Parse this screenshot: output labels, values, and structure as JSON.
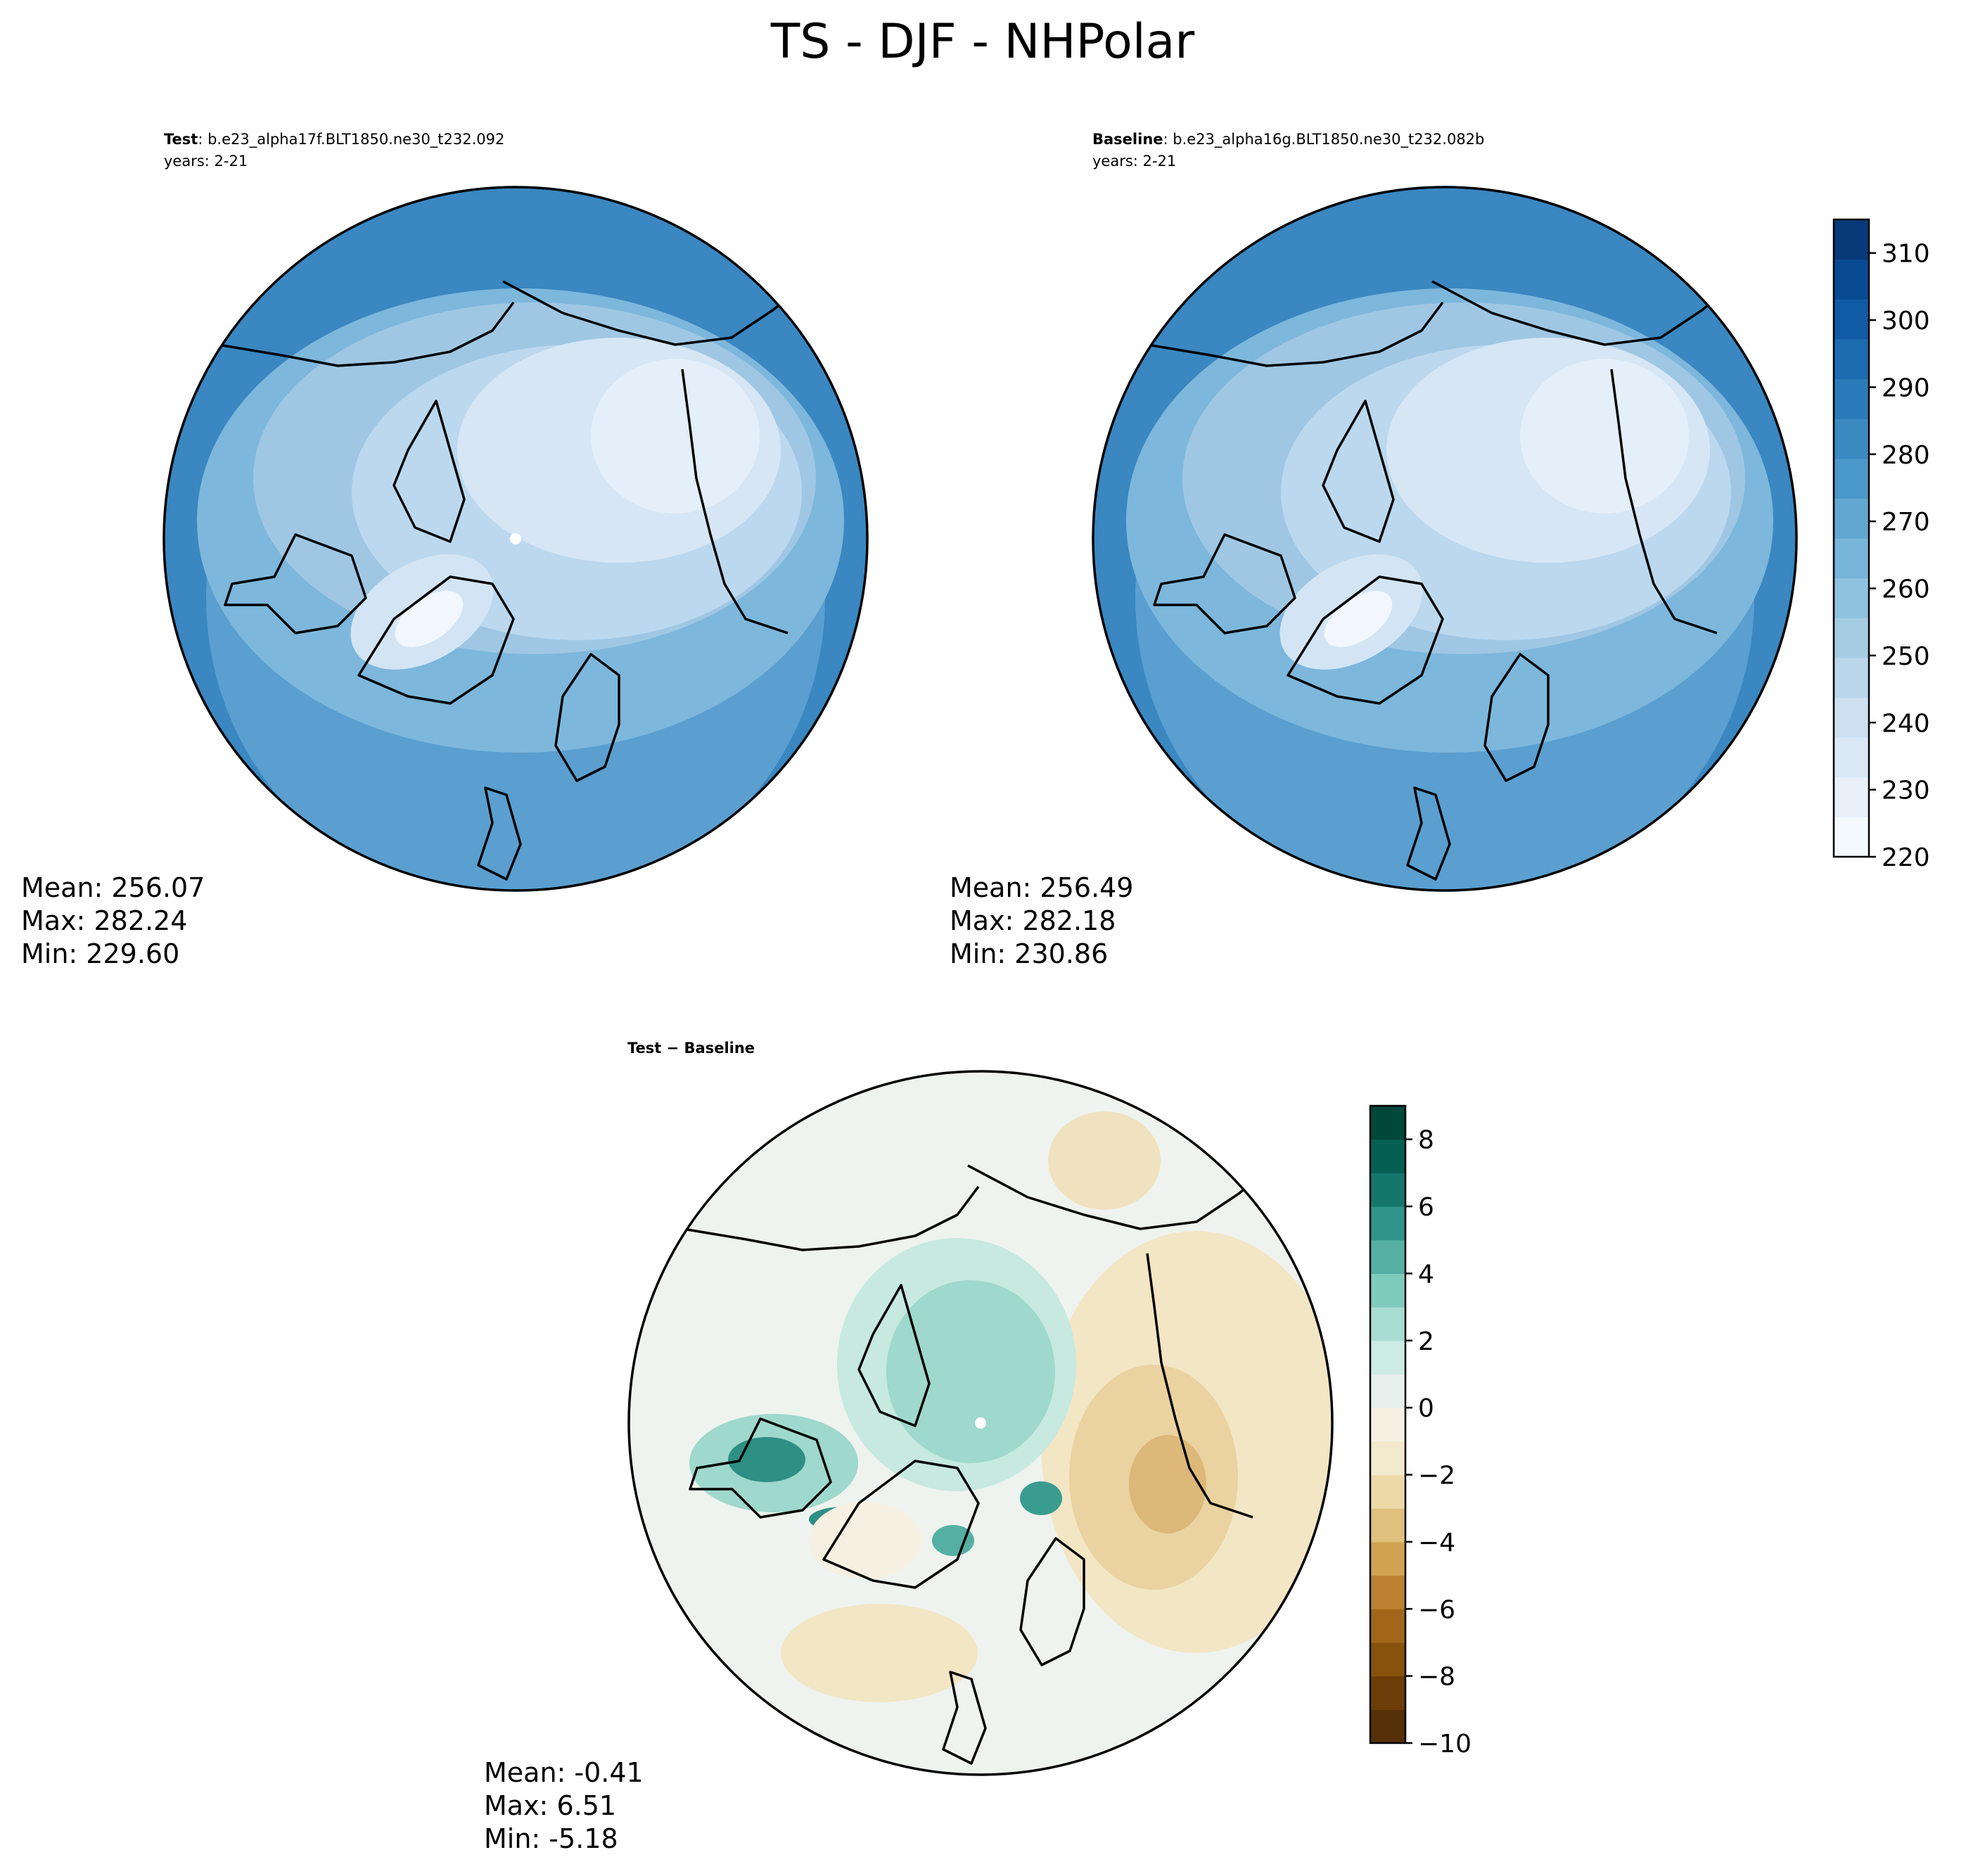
{
  "figure": {
    "title": "TS - DJF - NHPolar"
  },
  "test_panel": {
    "header_bold": "Test",
    "header_rest": ": b.e23_alpha17f.BLT1850.ne30_t232.092",
    "years": "years: 2-21",
    "stats": {
      "mean": "Mean: 256.07",
      "max": "Max: 282.24",
      "min": "Min: 229.60"
    }
  },
  "baseline_panel": {
    "header_bold": "Baseline",
    "header_rest": ": b.e23_alpha16g.BLT1850.ne30_t232.082b",
    "years": "years: 2-21",
    "stats": {
      "mean": "Mean: 256.49",
      "max": "Max: 282.18",
      "min": "Min: 230.86"
    }
  },
  "diff_panel": {
    "header_bold": "Test − Baseline",
    "stats": {
      "mean": "Mean: -0.41",
      "max": "Max:  6.51",
      "min": "Min: -5.18"
    }
  },
  "colorbar_abs": {
    "ticks": [
      "220",
      "230",
      "240",
      "250",
      "260",
      "270",
      "280",
      "290",
      "300",
      "310"
    ],
    "range": [
      220,
      315
    ],
    "colors": [
      "#f4f9fe",
      "#e8f1fa",
      "#dbe9f6",
      "#cde0f1",
      "#bad6eb",
      "#a5cce3",
      "#8fc2de",
      "#77b5d9",
      "#61a7d2",
      "#4a98c9",
      "#3a89c1",
      "#2b7bba",
      "#1d6cb1",
      "#105ba4",
      "#084b93",
      "#083a7a"
    ]
  },
  "colorbar_diff": {
    "ticks": [
      "−10",
      "−8",
      "−6",
      "−4",
      "−2",
      "0",
      "2",
      "4",
      "6",
      "8"
    ],
    "range": [
      -10,
      9
    ],
    "colors": [
      "#553008",
      "#6c3d09",
      "#87510e",
      "#a2661a",
      "#bb8130",
      "#d0a353",
      "#dfc07c",
      "#ecd9a7",
      "#f3e9cd",
      "#f5f0e2",
      "#e6f1ee",
      "#cdebe5",
      "#a8ddd2",
      "#7fcbbd",
      "#55b0a3",
      "#2f9489",
      "#15776c",
      "#075f53",
      "#01473a"
    ]
  },
  "maps": {
    "land_fill": "#000000",
    "coast_color": "#000000",
    "test_base_colors": {
      "outer": "#3a87c1",
      "ring": "#6eaed7",
      "mid": "#a9cde6",
      "inner": "#cfe2f3",
      "ice": "#eef5fc"
    },
    "diff_colors": {
      "pos_light": "#dff1ec",
      "pos_mid": "#9fd8cc",
      "pos_dark": "#2e8f84",
      "neg_light": "#f3e6c5",
      "neg_mid": "#e2c58e",
      "neutral": "#eef3ef"
    }
  }
}
